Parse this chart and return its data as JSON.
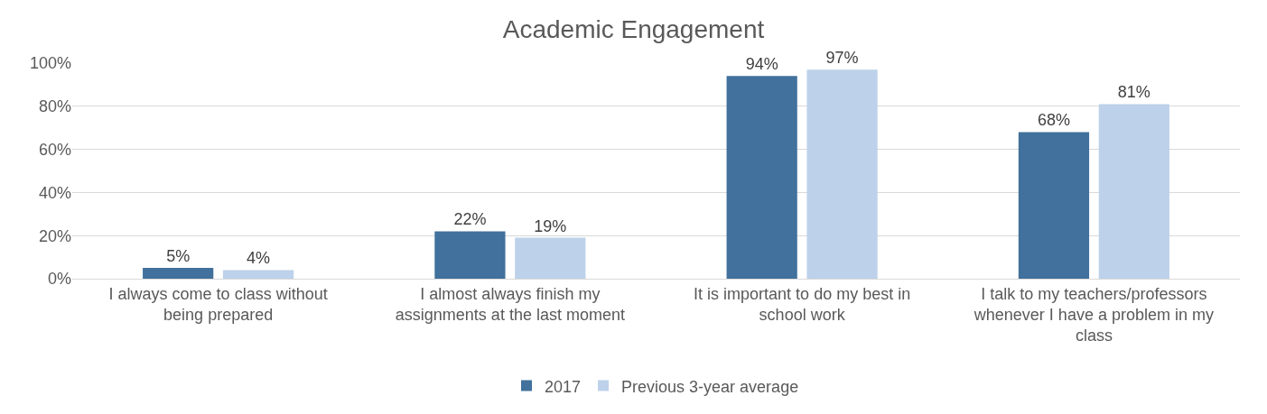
{
  "chart_data": {
    "type": "bar",
    "title": "Academic Engagement",
    "categories": [
      "I always come to class without being prepared",
      "I almost always finish my assignments at the last moment",
      "It is important to do my best in school work",
      "I talk to my teachers/professors whenever I have a problem in my class"
    ],
    "series": [
      {
        "name": "2017",
        "color": "#41719c",
        "values": [
          5,
          22,
          94,
          68
        ],
        "value_labels": [
          "5%",
          "22%",
          "94%",
          "68%"
        ]
      },
      {
        "name": "Previous 3-year average",
        "color": "#bdd1ea",
        "values": [
          4,
          19,
          97,
          81
        ],
        "value_labels": [
          "4%",
          "19%",
          "97%",
          "81%"
        ]
      }
    ],
    "ylim": [
      0,
      100
    ],
    "yticks": [
      {
        "value": 0,
        "label": "0%"
      },
      {
        "value": 20,
        "label": "20%"
      },
      {
        "value": 40,
        "label": "40%"
      },
      {
        "value": 60,
        "label": "60%"
      },
      {
        "value": 80,
        "label": "80%"
      },
      {
        "value": 100,
        "label": "100%"
      }
    ],
    "grid": "y",
    "legend": "bottom"
  }
}
